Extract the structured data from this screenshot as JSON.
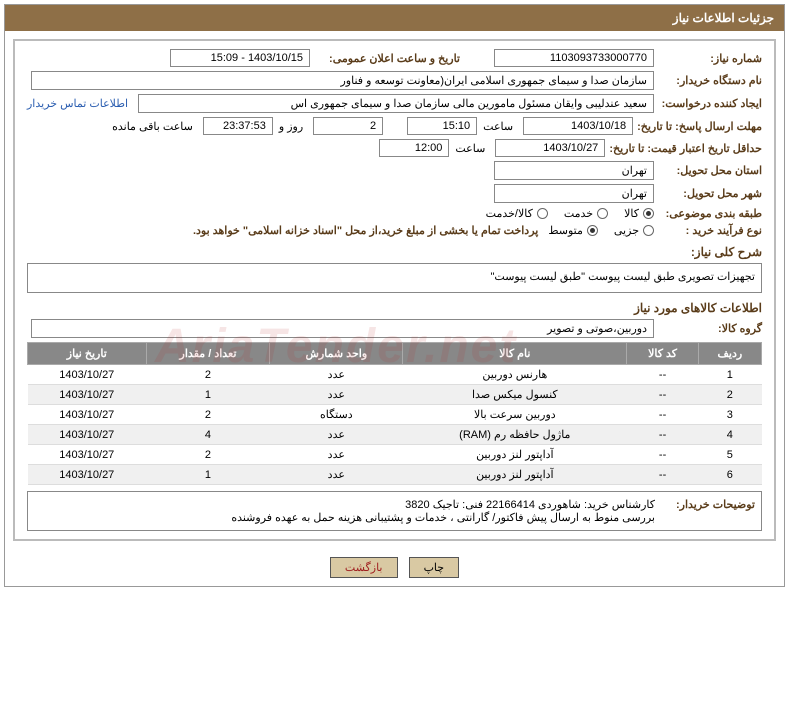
{
  "header": {
    "title": "جزئیات اطلاعات نیاز"
  },
  "fields": {
    "need_no_label": "شماره نیاز:",
    "need_no": "1103093733000770",
    "announce_label": "تاریخ و ساعت اعلان عمومی:",
    "announce_val": "1403/10/15 - 15:09",
    "buyer_org_label": "نام دستگاه خریدار:",
    "buyer_org": "سازمان صدا و سیمای جمهوری اسلامی ایران(معاونت توسعه و فناور",
    "requester_label": "ایجاد کننده درخواست:",
    "requester": "سعید عندلیبی وایقان مسئول مامورین مالی  سازمان صدا و سیمای جمهوری اس",
    "contact_link": "اطلاعات تماس خریدار",
    "deadline_label": "مهلت ارسال پاسخ: تا تاریخ:",
    "deadline_date": "1403/10/18",
    "time_label": "ساعت",
    "deadline_time": "15:10",
    "days": "2",
    "days_label": "روز و",
    "countdown": "23:37:53",
    "remain_label": "ساعت باقی مانده",
    "validity_label": "حداقل تاریخ اعتبار قیمت: تا تاریخ:",
    "validity_date": "1403/10/27",
    "validity_time": "12:00",
    "province_label": "استان محل تحویل:",
    "province": "تهران",
    "city_label": "شهر محل تحویل:",
    "city": "تهران",
    "category_label": "طبقه بندی موضوعی:",
    "cat_goods": "کالا",
    "cat_service": "خدمت",
    "cat_both": "کالا/خدمت",
    "process_label": "نوع فرآیند خرید :",
    "proc_partial": "جزیی",
    "proc_medium": "متوسط",
    "payment_note": "پرداخت تمام یا بخشی از مبلغ خرید،از محل \"اسناد خزانه اسلامی\" خواهد بود.",
    "desc_label": "شرح کلی نیاز:",
    "desc": "تجهیزات تصویری طبق لیست پیوست \"طبق لیست پیوست\"",
    "goods_info_label": "اطلاعات کالاهای مورد نیاز",
    "group_label": "گروه کالا:",
    "group": "دوربین،صوتی و تصویر",
    "buyer_notes_label": "توضیحات خریدار:",
    "buyer_notes_l1": "کارشناس خرید: شاهوردی 22166414  فنی: تاجیک 3820",
    "buyer_notes_l2": "بررسی منوط به ارسال پیش فاکتور/ گارانتی ، خدمات و پشتیبانی هزینه حمل به عهده فروشنده"
  },
  "table": {
    "headers": [
      "ردیف",
      "کد کالا",
      "نام کالا",
      "واحد شمارش",
      "تعداد / مقدار",
      "تاریخ نیاز"
    ],
    "rows": [
      [
        "1",
        "--",
        "هارنس دوربین",
        "عدد",
        "2",
        "1403/10/27"
      ],
      [
        "2",
        "--",
        "کنسول میکس صدا",
        "عدد",
        "1",
        "1403/10/27"
      ],
      [
        "3",
        "--",
        "دوربین سرعت بالا",
        "دستگاه",
        "2",
        "1403/10/27"
      ],
      [
        "4",
        "--",
        "ماژول حافظه رم (RAM)",
        "عدد",
        "4",
        "1403/10/27"
      ],
      [
        "5",
        "--",
        "آداپتور لنز دوربین",
        "عدد",
        "2",
        "1403/10/27"
      ],
      [
        "6",
        "--",
        "آداپتور لنز دوربین",
        "عدد",
        "1",
        "1403/10/27"
      ]
    ]
  },
  "buttons": {
    "print": "چاپ",
    "back": "بازگشت"
  },
  "watermark": "AriaTender.net",
  "colors": {
    "header_bg": "#8e6f47",
    "label_color": "#5a3c1a",
    "th_bg": "#888888",
    "link_color": "#2a5db0",
    "btn_bg": "#d9c9a3"
  }
}
